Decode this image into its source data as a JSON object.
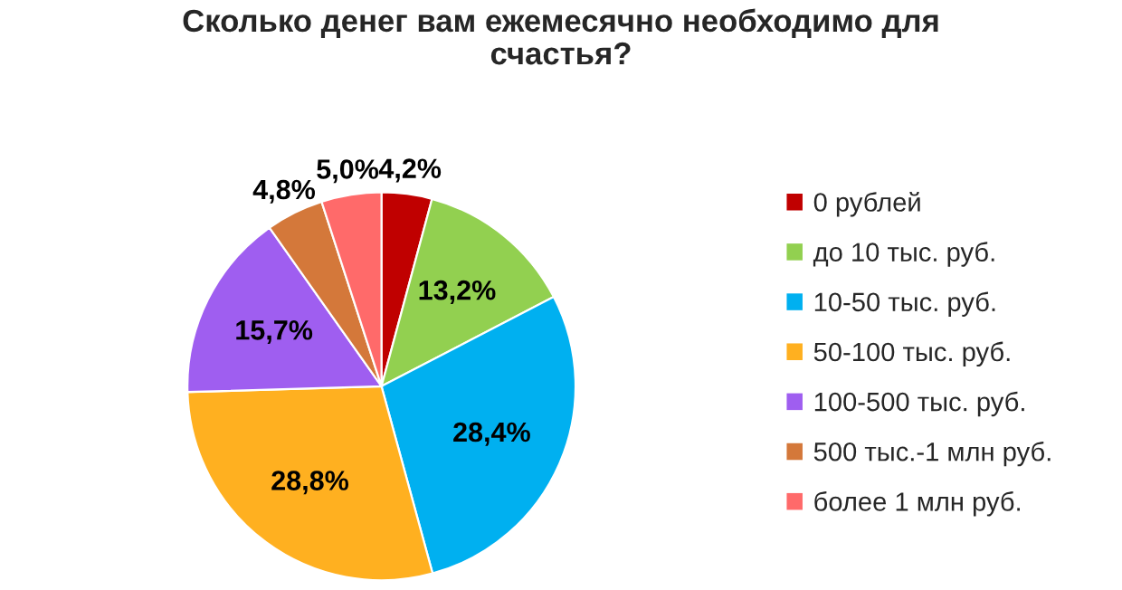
{
  "chart_data": {
    "type": "pie",
    "title": "Сколько денег вам ежемесячно необходимо для\nсчастья?",
    "categories": [
      "0 рублей",
      "до 10 тыс. руб.",
      "10-50 тыс. руб.",
      "50-100 тыс. руб.",
      "100-500 тыс. руб.",
      "500 тыс.-1 млн руб.",
      "более 1 млн руб."
    ],
    "values": [
      4.2,
      13.2,
      28.4,
      28.8,
      15.7,
      4.8,
      5.0
    ],
    "value_labels": [
      "4,2%",
      "13,2%",
      "28,4%",
      "28,8%",
      "15,7%",
      "4,8%",
      "5,0%"
    ],
    "colors": [
      "#c00000",
      "#92d050",
      "#00b0f0",
      "#ffb020",
      "#9f5ef0",
      "#d4783a",
      "#ff6a6a"
    ],
    "legend": "right"
  }
}
